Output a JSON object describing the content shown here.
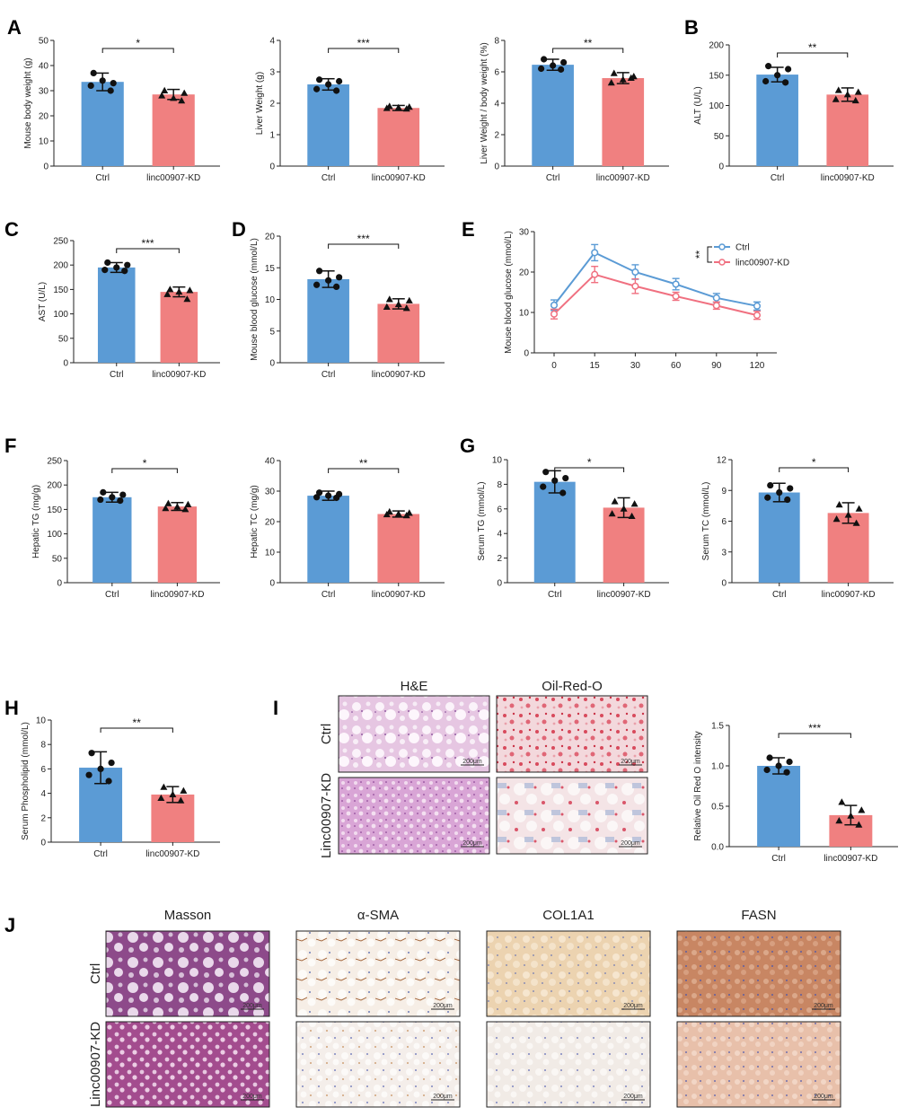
{
  "colors": {
    "ctrl": "#5b9bd5",
    "kd": "#f08080",
    "ctrl_line": "#5b9bd5",
    "kd_line": "#f07080"
  },
  "panel_letters": [
    "A",
    "B",
    "C",
    "D",
    "E",
    "F",
    "G",
    "H",
    "I",
    "J"
  ],
  "chart_data": [
    {
      "id": "A1",
      "letter": "A",
      "type": "bar",
      "ylabel": "Mouse body weight (g)",
      "categories": [
        "Ctrl",
        "linc00907-KD"
      ],
      "values": [
        33.5,
        28.5
      ],
      "errors": [
        3.5,
        2.0
      ],
      "ylim": [
        0,
        50
      ],
      "yticks": [
        0,
        10,
        20,
        30,
        40,
        50
      ],
      "sig": "*",
      "points": [
        [
          37,
          33,
          34,
          32,
          30
        ],
        [
          30,
          29,
          27,
          28,
          26
        ]
      ]
    },
    {
      "id": "A2",
      "type": "bar",
      "ylabel": "Liver Weight (g)",
      "categories": [
        "Ctrl",
        "linc00907-KD"
      ],
      "values": [
        2.6,
        1.85
      ],
      "errors": [
        0.18,
        0.08
      ],
      "ylim": [
        0,
        4
      ],
      "yticks": [
        0,
        1,
        2,
        3,
        4
      ],
      "sig": "***",
      "points": [
        [
          2.75,
          2.7,
          2.6,
          2.45,
          2.4
        ],
        [
          1.9,
          1.88,
          1.86,
          1.84,
          1.82
        ]
      ]
    },
    {
      "id": "A3",
      "type": "bar",
      "ylabel": "Liver Weight / body weight (%)",
      "categories": [
        "Ctrl",
        "linc00907-KD"
      ],
      "values": [
        6.45,
        5.6
      ],
      "errors": [
        0.35,
        0.35
      ],
      "ylim": [
        0,
        8
      ],
      "yticks": [
        0,
        2,
        4,
        6,
        8
      ],
      "sig": "**",
      "points": [
        [
          6.8,
          6.6,
          6.4,
          6.2,
          6.15
        ],
        [
          5.9,
          5.7,
          5.5,
          5.3,
          5.6
        ]
      ]
    },
    {
      "id": "B",
      "letter": "B",
      "type": "bar",
      "ylabel": "ALT (U/L)",
      "categories": [
        "Ctrl",
        "linc00907-KD"
      ],
      "values": [
        151,
        118
      ],
      "errors": [
        12,
        11
      ],
      "ylim": [
        0,
        200
      ],
      "yticks": [
        0,
        50,
        100,
        150,
        200
      ],
      "sig": "**",
      "points": [
        [
          165,
          160,
          150,
          140,
          138
        ],
        [
          125,
          122,
          118,
          110,
          108
        ]
      ]
    },
    {
      "id": "C",
      "letter": "C",
      "type": "bar",
      "ylabel": "AST (U/L)",
      "categories": [
        "Ctrl",
        "linc00907-KD"
      ],
      "values": [
        195,
        145
      ],
      "errors": [
        10,
        10
      ],
      "ylim": [
        0,
        250
      ],
      "yticks": [
        0,
        50,
        100,
        150,
        200,
        250
      ],
      "sig": "***",
      "points": [
        [
          205,
          200,
          195,
          190,
          188
        ],
        [
          150,
          148,
          145,
          140,
          130
        ]
      ]
    },
    {
      "id": "D",
      "letter": "D",
      "type": "bar",
      "ylabel": "Mouse blood glucose (mmol/L)",
      "categories": [
        "Ctrl",
        "linc00907-KD"
      ],
      "values": [
        13.2,
        9.3
      ],
      "errors": [
        1.3,
        0.8
      ],
      "ylim": [
        0,
        20
      ],
      "yticks": [
        0,
        5,
        10,
        15,
        20
      ],
      "sig": "***",
      "points": [
        [
          14.5,
          13.5,
          13,
          12.3,
          12
        ],
        [
          10,
          9.8,
          9.2,
          8.8,
          8.6
        ]
      ]
    },
    {
      "id": "E",
      "letter": "E",
      "type": "line",
      "ylabel": "Mouse blood glucose (mmol/L)",
      "x": [
        "0",
        "15",
        "30",
        "60",
        "90",
        "120"
      ],
      "ylim": [
        0,
        30
      ],
      "yticks": [
        0,
        10,
        20,
        30
      ],
      "sig": "**",
      "series": [
        {
          "name": "Ctrl",
          "values": [
            11.8,
            24.8,
            20.0,
            17.0,
            13.6,
            11.6
          ],
          "errors": [
            1.3,
            2.0,
            1.8,
            1.4,
            1.1,
            1.0
          ]
        },
        {
          "name": "linc00907-KD",
          "values": [
            9.6,
            19.4,
            16.5,
            14.0,
            11.7,
            9.3
          ],
          "errors": [
            1.2,
            2.0,
            1.8,
            1.0,
            0.9,
            1.0
          ]
        }
      ]
    },
    {
      "id": "F1",
      "letter": "F",
      "type": "bar",
      "ylabel": "Hepatic TG (mg/g)",
      "categories": [
        "Ctrl",
        "linc00907-KD"
      ],
      "values": [
        175,
        156
      ],
      "errors": [
        10,
        8
      ],
      "ylim": [
        0,
        250
      ],
      "yticks": [
        0,
        50,
        100,
        150,
        200,
        250
      ],
      "sig": "*",
      "points": [
        [
          185,
          180,
          175,
          170,
          168
        ],
        [
          162,
          160,
          155,
          152,
          150
        ]
      ]
    },
    {
      "id": "F2",
      "type": "bar",
      "ylabel": "Hepatic TC (mg/g)",
      "categories": [
        "Ctrl",
        "linc00907-KD"
      ],
      "values": [
        28.5,
        22.5
      ],
      "errors": [
        1.5,
        1.0
      ],
      "ylim": [
        0,
        40
      ],
      "yticks": [
        0,
        10,
        20,
        30,
        40
      ],
      "sig": "**",
      "points": [
        [
          29.5,
          29,
          28.5,
          28,
          27.8
        ],
        [
          23.2,
          22.8,
          22.5,
          22.3,
          22
        ]
      ]
    },
    {
      "id": "G1",
      "letter": "G",
      "type": "bar",
      "ylabel": "Serum TG (mmol/L)",
      "categories": [
        "Ctrl",
        "linc00907-KD"
      ],
      "values": [
        8.2,
        6.1
      ],
      "errors": [
        0.9,
        0.8
      ],
      "ylim": [
        0,
        10
      ],
      "yticks": [
        0,
        2,
        4,
        6,
        8,
        10
      ],
      "sig": "*",
      "points": [
        [
          9.0,
          8.5,
          8.3,
          7.8,
          7.3
        ],
        [
          6.6,
          6.4,
          6.0,
          5.6,
          5.4
        ]
      ]
    },
    {
      "id": "G2",
      "type": "bar",
      "ylabel": "Serum TC (mmol/L)",
      "categories": [
        "Ctrl",
        "linc00907-KD"
      ],
      "values": [
        8.8,
        6.8
      ],
      "errors": [
        0.9,
        1.0
      ],
      "ylim": [
        0,
        12
      ],
      "yticks": [
        0,
        3,
        6,
        9,
        12
      ],
      "sig": "*",
      "points": [
        [
          9.5,
          9.2,
          8.8,
          8.3,
          8.1
        ],
        [
          7.6,
          7.2,
          6.6,
          6.2,
          5.8
        ]
      ]
    },
    {
      "id": "H",
      "letter": "H",
      "type": "bar",
      "ylabel": "Serum Phospholipid (mmol/L)",
      "categories": [
        "Ctrl",
        "linc00907-KD"
      ],
      "values": [
        6.1,
        3.9
      ],
      "errors": [
        1.3,
        0.65
      ],
      "ylim": [
        0,
        10
      ],
      "yticks": [
        0,
        2,
        4,
        6,
        8,
        10
      ],
      "sig": "**",
      "points": [
        [
          7.3,
          6.5,
          6.0,
          5.5,
          5.0
        ],
        [
          4.5,
          4.2,
          3.9,
          3.6,
          3.4
        ]
      ]
    },
    {
      "id": "I",
      "type": "bar",
      "ylabel": "Relative Oil Red O intensity",
      "categories": [
        "Ctrl",
        "linc00907-KD"
      ],
      "values": [
        1.0,
        0.39
      ],
      "errors": [
        0.1,
        0.12
      ],
      "ylim": [
        0,
        1.5
      ],
      "yticks": [
        "0.0",
        "0.5",
        "1.0",
        "1.5"
      ],
      "sig": "***",
      "points": [
        [
          1.1,
          1.05,
          1.0,
          0.95,
          0.92
        ],
        [
          0.55,
          0.45,
          0.38,
          0.32,
          0.27
        ]
      ]
    }
  ],
  "histology_I": {
    "letter": "I",
    "columns": [
      "H&E",
      "Oil-Red-O"
    ],
    "rows": [
      "Ctrl",
      "Linc00907-KD"
    ],
    "scale_bar": "200μm"
  },
  "histology_J": {
    "letter": "J",
    "columns": [
      "Masson",
      "α-SMA",
      "COL1A1",
      "FASN"
    ],
    "rows": [
      "Ctrl",
      "Linc00907-KD"
    ],
    "scale_bar": "200μm"
  }
}
